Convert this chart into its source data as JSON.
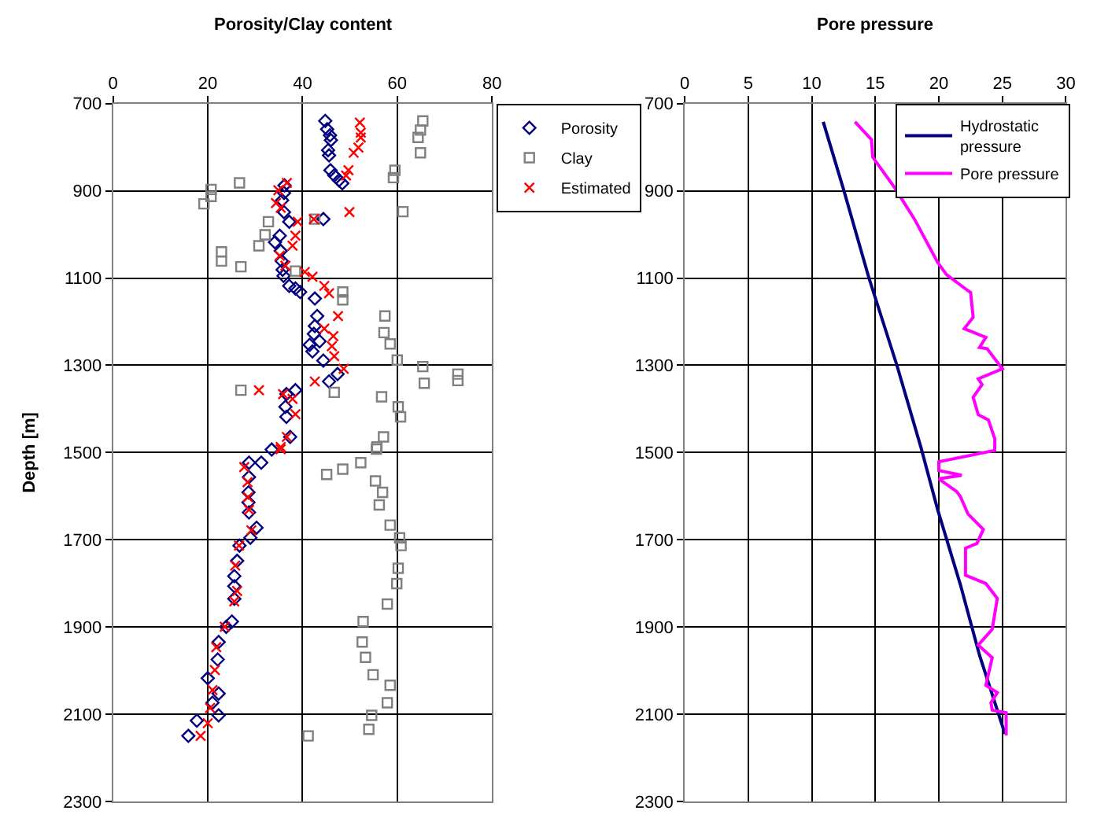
{
  "chart_data": [
    {
      "type": "scatter",
      "title": "Porosity/Clay content",
      "ylabel": "Depth [m]",
      "xlim": [
        0,
        80
      ],
      "xticks": [
        0,
        20,
        40,
        60,
        80
      ],
      "ylim": [
        2300,
        700
      ],
      "yticks": [
        700,
        900,
        1100,
        1300,
        1500,
        1700,
        1900,
        2100,
        2300
      ],
      "grid": true,
      "legend": "top right",
      "series": [
        {
          "name": "Porosity",
          "color": "#000080",
          "marker": "diamond",
          "x": [
            44.8,
            45.2,
            45.8,
            46.0,
            45.4,
            45.6,
            45.9,
            46.7,
            47.7,
            48.4,
            36.2,
            36.1,
            35.7,
            36.1,
            37.2,
            44.4,
            35.2,
            34.2,
            35.4,
            35.6,
            35.8,
            36.0,
            37.2,
            38.5,
            39.5,
            42.6,
            43.1,
            42.6,
            42.4,
            41.5,
            42.1,
            43.6,
            44.4,
            45.6,
            47.4,
            38.5,
            36.6,
            36.4,
            36.6,
            37.4,
            33.5,
            31.3,
            28.7,
            28.7,
            28.6,
            28.6,
            28.7,
            30.3,
            29.0,
            26.7,
            26.2,
            25.6,
            25.6,
            25.6,
            25.1,
            23.9,
            22.3,
            22.1,
            20.0,
            22.3,
            21.0,
            22.3,
            17.7,
            15.9
          ],
          "values": [
            740,
            759,
            773,
            784,
            807,
            819,
            853,
            865,
            876,
            883,
            888,
            905,
            922,
            949,
            971,
            965,
            1003,
            1018,
            1038,
            1061,
            1081,
            1095,
            1118,
            1124,
            1132,
            1147,
            1187,
            1210,
            1228,
            1253,
            1268,
            1245,
            1289,
            1337,
            1320,
            1357,
            1366,
            1395,
            1418,
            1464,
            1493,
            1523,
            1523,
            1556,
            1591,
            1614,
            1637,
            1672,
            1695,
            1713,
            1748,
            1783,
            1806,
            1835,
            1887,
            1899,
            1934,
            1974,
            2017,
            2052,
            2073,
            2102,
            2114,
            2149
          ]
        },
        {
          "name": "Clay",
          "color": "#808080",
          "marker": "square",
          "x": [
            65.4,
            64.9,
            64.4,
            64.9,
            59.5,
            59.2,
            26.7,
            20.7,
            19.2,
            20.7,
            61.2,
            32.8,
            32.1,
            30.8,
            22.9,
            22.9,
            27.0,
            38.5,
            42.6,
            48.5,
            48.5,
            57.4,
            57.2,
            58.5,
            60.0,
            65.4,
            65.7,
            72.8,
            72.8,
            27.0,
            46.7,
            56.7,
            60.2,
            60.7,
            57.1,
            55.7,
            55.6,
            52.3,
            48.5,
            45.1,
            55.4,
            56.9,
            56.2,
            58.5,
            60.5,
            60.8,
            60.2,
            59.9,
            57.9,
            52.8,
            52.6,
            53.3,
            54.9,
            58.5,
            57.9,
            54.6,
            54.0,
            41.2
          ],
          "values": [
            740,
            761,
            778,
            813,
            853,
            870,
            882,
            897,
            930,
            913,
            948,
            971,
            1001,
            1026,
            1040,
            1061,
            1074,
            1084,
            965,
            1132,
            1150,
            1187,
            1225,
            1251,
            1288,
            1303,
            1341,
            1320,
            1335,
            1357,
            1362,
            1372,
            1395,
            1418,
            1464,
            1487,
            1492,
            1523,
            1538,
            1550,
            1565,
            1591,
            1620,
            1666,
            1695,
            1713,
            1765,
            1800,
            1847,
            1887,
            1934,
            1969,
            2009,
            2033,
            2073,
            2102,
            2134,
            2149
          ]
        },
        {
          "name": "Estimated",
          "color": "#ff0000",
          "marker": "cross",
          "x": [
            52.1,
            52.3,
            52.3,
            51.8,
            50.8,
            49.7,
            49.2,
            49.9,
            36.7,
            34.9,
            34.4,
            35.4,
            42.4,
            39.0,
            38.5,
            37.9,
            35.2,
            36.4,
            40.5,
            42.1,
            44.6,
            45.6,
            47.5,
            44.6,
            46.5,
            46.2,
            46.7,
            48.7,
            42.6,
            30.8,
            35.9,
            37.9,
            38.5,
            36.7,
            35.4,
            35.4,
            27.7,
            28.4,
            28.5,
            28.7,
            29.2,
            26.6,
            25.8,
            26.2,
            25.6,
            23.6,
            21.8,
            21.5,
            21.0,
            20.5,
            20.0,
            18.5
          ],
          "values": [
            744,
            767,
            778,
            801,
            813,
            853,
            865,
            949,
            882,
            899,
            928,
            939,
            965,
            971,
            1003,
            1026,
            1049,
            1072,
            1086,
            1097,
            1118,
            1135,
            1187,
            1216,
            1233,
            1256,
            1279,
            1308,
            1337,
            1357,
            1366,
            1377,
            1412,
            1464,
            1487,
            1492,
            1533,
            1568,
            1602,
            1631,
            1678,
            1713,
            1759,
            1817,
            1841,
            1899,
            1946,
            1998,
            2044,
            2085,
            2120,
            2149
          ]
        }
      ]
    },
    {
      "type": "line",
      "title": "Pore pressure",
      "xlim": [
        0,
        30
      ],
      "xticks": [
        0,
        5,
        10,
        15,
        20,
        25,
        30
      ],
      "ylim": [
        2300,
        700
      ],
      "yticks": [
        700,
        900,
        1100,
        1300,
        1500,
        1700,
        1900,
        2100,
        2300
      ],
      "grid": true,
      "legend": "top right",
      "line_style": "solid",
      "marker": "none",
      "series": [
        {
          "name": "Hydrostatic pressure",
          "color": "#000080",
          "x": [
            10.9,
            12.5,
            14.5,
            16.7,
            18.6,
            19.9,
            21.7,
            23.2,
            25.2
          ],
          "values": [
            742,
            897,
            1100,
            1300,
            1489,
            1630,
            1803,
            1964,
            2144
          ]
        },
        {
          "name": "Pore pressure",
          "color": "#ff00ff",
          "x": [
            13.4,
            14.7,
            14.8,
            16.5,
            18.1,
            19.9,
            20.6,
            22.2,
            22.5,
            22.7,
            22.0,
            23.7,
            23.2,
            23.8,
            25.0,
            23.1,
            23.4,
            22.7,
            23.1,
            23.9,
            24.4,
            24.4,
            20.0,
            20.0,
            21.8,
            20.0,
            21.4,
            21.7,
            22.3,
            23.5,
            23.0,
            22.1,
            22.1,
            23.7,
            24.6,
            24.2,
            23.1,
            24.2,
            23.7,
            24.6,
            24.1,
            24.2,
            25.3,
            25.3
          ],
          "values": [
            742,
            783,
            823,
            892,
            966,
            1064,
            1092,
            1127,
            1133,
            1190,
            1216,
            1236,
            1259,
            1262,
            1308,
            1331,
            1344,
            1373,
            1413,
            1425,
            1468,
            1495,
            1521,
            1541,
            1552,
            1560,
            1589,
            1601,
            1641,
            1676,
            1708,
            1719,
            1781,
            1800,
            1834,
            1905,
            1941,
            1970,
            2033,
            2050,
            2073,
            2090,
            2096,
            2148
          ]
        }
      ]
    }
  ]
}
